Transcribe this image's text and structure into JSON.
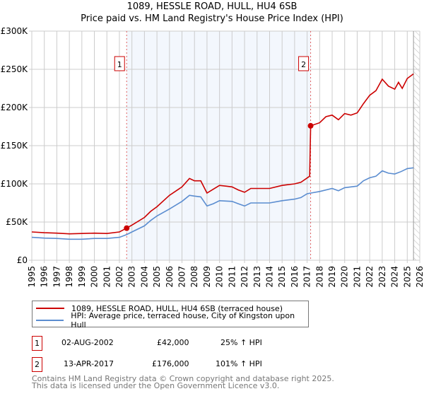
{
  "title": "1089, HESSLE ROAD, HULL, HU4 6SB",
  "subtitle": "Price paid vs. HM Land Registry's House Price Index (HPI)",
  "chart_data": {
    "type": "line",
    "title": "1089, HESSLE ROAD, HULL, HU4 6SB — Price paid vs. HM Land Registry's House Price Index (HPI)",
    "xlim": [
      1995,
      2026
    ],
    "ylim": [
      0,
      300000
    ],
    "x_ticks": [
      "1995",
      "1996",
      "1997",
      "1998",
      "1999",
      "2000",
      "2001",
      "2002",
      "2003",
      "2004",
      "2005",
      "2006",
      "2007",
      "2008",
      "2009",
      "2010",
      "2011",
      "2012",
      "2013",
      "2014",
      "2015",
      "2016",
      "2017",
      "2018",
      "2019",
      "2020",
      "2021",
      "2022",
      "2023",
      "2024",
      "2025",
      "2026"
    ],
    "y_ticks": [
      {
        "v": 0,
        "label": "£0"
      },
      {
        "v": 50000,
        "label": "£50K"
      },
      {
        "v": 100000,
        "label": "£100K"
      },
      {
        "v": 150000,
        "label": "£150K"
      },
      {
        "v": 200000,
        "label": "£200K"
      },
      {
        "v": 250000,
        "label": "£250K"
      },
      {
        "v": 300000,
        "label": "£300K"
      }
    ],
    "grid": true,
    "series": [
      {
        "name": "1089, HESSLE ROAD, HULL, HU4 6SB (terraced house)",
        "color": "#cc0000",
        "x": [
          1995,
          1996,
          1997,
          1998,
          1999,
          2000,
          2001,
          2002,
          2002.58,
          2003,
          2004,
          2004.5,
          2005,
          2006,
          2007,
          2007.6,
          2008,
          2008.5,
          2009,
          2009.5,
          2010,
          2010.5,
          2011,
          2011.5,
          2012,
          2012.5,
          2013,
          2014,
          2015,
          2016,
          2016.5,
          2017.2,
          2017.28,
          2018,
          2018.5,
          2019,
          2019.5,
          2020,
          2020.5,
          2021,
          2021.5,
          2022,
          2022.5,
          2023,
          2023.5,
          2024,
          2024.3,
          2024.6,
          2025,
          2025.5
        ],
        "y": [
          37000,
          36000,
          35500,
          34500,
          35000,
          35500,
          35000,
          37000,
          42000,
          46000,
          56000,
          64000,
          70000,
          85000,
          96000,
          107000,
          104000,
          104000,
          88000,
          93000,
          98000,
          97000,
          96000,
          92000,
          89000,
          94000,
          94000,
          94000,
          98000,
          100000,
          102000,
          110000,
          176000,
          180000,
          188000,
          190000,
          184000,
          192000,
          190000,
          193000,
          205000,
          216000,
          222000,
          237000,
          228000,
          224000,
          233000,
          225000,
          238000,
          244000
        ]
      },
      {
        "name": "HPI: Average price, terraced house, City of Kingston upon Hull",
        "color": "#5b8dd0",
        "x": [
          1995,
          1996,
          1997,
          1998,
          1999,
          2000,
          2001,
          2002,
          2002.58,
          2003,
          2004,
          2004.5,
          2005,
          2006,
          2007,
          2007.6,
          2008,
          2008.5,
          2009,
          2009.5,
          2010,
          2011,
          2011.5,
          2012,
          2012.5,
          2013,
          2014,
          2015,
          2016,
          2016.5,
          2017,
          2017.3,
          2018,
          2019,
          2019.5,
          2020,
          2021,
          2021.5,
          2022,
          2022.5,
          2023,
          2023.5,
          2024,
          2024.5,
          2025,
          2025.5
        ],
        "y": [
          30000,
          29000,
          28500,
          27500,
          27500,
          28500,
          28500,
          30000,
          33500,
          37000,
          45000,
          52000,
          58000,
          67000,
          77000,
          85000,
          84000,
          83000,
          71000,
          74000,
          78000,
          77000,
          74000,
          71000,
          75000,
          75000,
          75000,
          78000,
          80000,
          82000,
          87000,
          88000,
          90000,
          94000,
          91000,
          95000,
          97000,
          104000,
          108000,
          110000,
          117000,
          114000,
          113000,
          116000,
          120000,
          121000
        ]
      }
    ],
    "markers": [
      {
        "label": "1",
        "x": 2002.58,
        "y": 42000
      },
      {
        "label": "2",
        "x": 2017.28,
        "y": 176000
      }
    ],
    "shaded_range": [
      2002.58,
      2017.28
    ],
    "hatched_from": 2025.5,
    "legend": "below"
  },
  "sales": [
    {
      "num": "1",
      "date": "02-AUG-2002",
      "price": "£42,000",
      "hpi": "25% ↑ HPI"
    },
    {
      "num": "2",
      "date": "13-APR-2017",
      "price": "£176,000",
      "hpi": "101% ↑ HPI"
    }
  ],
  "footer": [
    "Contains HM Land Registry data © Crown copyright and database right 2025.",
    "This data is licensed under the Open Government Licence v3.0."
  ]
}
